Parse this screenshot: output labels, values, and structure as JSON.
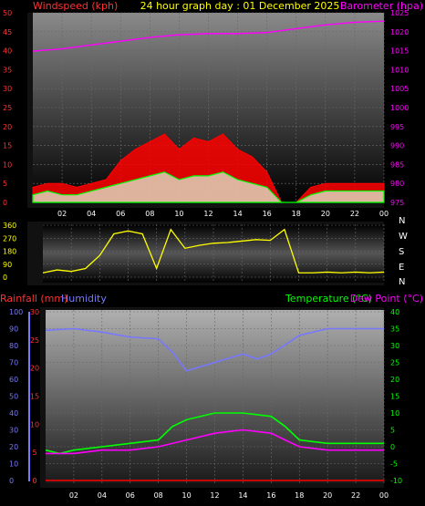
{
  "header": {
    "left_title": "Windspeed (kph)",
    "center_title": "24 hour graph day : 01 December 2025",
    "right_title": "Barometer (hpa)"
  },
  "hour_labels": [
    "02",
    "04",
    "06",
    "08",
    "10",
    "12",
    "14",
    "16",
    "18",
    "20",
    "22",
    "00"
  ],
  "colors": {
    "wind": "#ff0000",
    "gust": "#00ff00",
    "barometer": "#ff00ff",
    "direction": "#ffff00",
    "rain": "#ff0000",
    "humidity": "#7777ff",
    "temperature": "#00ff00",
    "dewpoint": "#ff00ff"
  },
  "chart_data": [
    {
      "type": "line",
      "name": "wind-barometer",
      "left_axis": {
        "label": "Windspeed (kph)",
        "ticks": [
          0,
          5,
          10,
          15,
          20,
          25,
          30,
          35,
          40,
          45,
          50
        ],
        "range": [
          0,
          50
        ]
      },
      "right_axis": {
        "label": "Barometer (hpa)",
        "ticks": [
          975,
          980,
          985,
          990,
          995,
          1000,
          1005,
          1010,
          1015,
          1020,
          1025
        ],
        "range": [
          975,
          1025
        ]
      },
      "series": [
        {
          "name": "Barometer",
          "axis": "right",
          "x": [
            0,
            2,
            4,
            6,
            8,
            10,
            12,
            14,
            16,
            18,
            20,
            22,
            24
          ],
          "y": [
            1014.9,
            1015.5,
            1016.5,
            1017.5,
            1018.5,
            1019.2,
            1019.5,
            1019.5,
            1019.8,
            1020.8,
            1021.8,
            1022.5,
            1022.8
          ]
        },
        {
          "name": "Wind",
          "axis": "left",
          "x": [
            0,
            1,
            2,
            3,
            4,
            5,
            6,
            7,
            8,
            9,
            10,
            11,
            12,
            13,
            14,
            15,
            16,
            17,
            18,
            19,
            20,
            21,
            22,
            23,
            24
          ],
          "y": [
            4,
            5,
            5,
            4,
            5,
            6,
            11,
            14,
            16,
            18,
            14,
            17,
            16,
            18,
            14,
            12,
            8,
            0,
            0,
            4,
            5,
            5,
            5,
            5,
            5
          ]
        },
        {
          "name": "Gust",
          "axis": "left",
          "x": [
            0,
            1,
            2,
            3,
            4,
            5,
            6,
            7,
            8,
            9,
            10,
            11,
            12,
            13,
            14,
            15,
            16,
            17,
            18,
            19,
            20,
            21,
            22,
            23,
            24
          ],
          "y": [
            2,
            3,
            2,
            2,
            3,
            4,
            5,
            6,
            7,
            8,
            6,
            7,
            7,
            8,
            6,
            5,
            4,
            0,
            0,
            2,
            3,
            3,
            3,
            3,
            3
          ]
        }
      ]
    },
    {
      "type": "line",
      "name": "wind-direction",
      "left_axis": {
        "ticks": [
          0,
          90,
          180,
          270,
          360
        ],
        "range": [
          0,
          360
        ]
      },
      "right_axis": {
        "ticks": [
          "N",
          "W",
          "S",
          "E",
          "N"
        ]
      },
      "series": [
        {
          "name": "Direction",
          "x": [
            0,
            1,
            2,
            3,
            4,
            5,
            6,
            7,
            8,
            9,
            10,
            11,
            12,
            13,
            14,
            15,
            16,
            17,
            18,
            19,
            20,
            21,
            22,
            23,
            24
          ],
          "y": [
            30,
            50,
            40,
            60,
            150,
            300,
            320,
            300,
            60,
            330,
            200,
            220,
            235,
            240,
            250,
            260,
            255,
            330,
            30,
            30,
            35,
            30,
            35,
            30,
            35
          ]
        }
      ]
    },
    {
      "type": "line",
      "name": "rain-humidity-temperature",
      "humidity_axis": {
        "label": "Humidity",
        "ticks": [
          0,
          10,
          20,
          30,
          40,
          50,
          60,
          70,
          80,
          90,
          100
        ],
        "range": [
          0,
          100
        ]
      },
      "rain_axis": {
        "label": "Rainfall (mm)",
        "ticks": [
          0,
          5,
          10,
          15,
          20,
          25,
          30
        ],
        "range": [
          0,
          30
        ]
      },
      "temp_axis": {
        "label": "Temperature (°C)",
        "ticks": [
          -10,
          -5,
          0,
          5,
          10,
          15,
          20,
          25,
          30,
          35,
          40
        ],
        "range": [
          -10,
          40
        ]
      },
      "dew_label": "Dew Point (°C)",
      "series": [
        {
          "name": "Humidity",
          "axis": "humidity",
          "x": [
            0,
            2,
            4,
            6,
            8,
            9,
            10,
            12,
            14,
            15,
            16,
            18,
            20,
            22,
            24
          ],
          "y": [
            89,
            90,
            88,
            85,
            84,
            76,
            65,
            70,
            75,
            72,
            75,
            86,
            90,
            90,
            90
          ]
        },
        {
          "name": "Temperature",
          "axis": "temp",
          "x": [
            0,
            1,
            2,
            4,
            6,
            8,
            9,
            10,
            12,
            14,
            16,
            17,
            18,
            20,
            22,
            24
          ],
          "y": [
            -1,
            -2,
            -1,
            0,
            1,
            2,
            6,
            8,
            10,
            10,
            9,
            6,
            2,
            1,
            1,
            1
          ]
        },
        {
          "name": "Dew Point",
          "axis": "temp",
          "x": [
            0,
            2,
            4,
            6,
            8,
            10,
            12,
            14,
            16,
            17,
            18,
            20,
            22,
            24
          ],
          "y": [
            -2,
            -2,
            -1,
            -1,
            0,
            2,
            4,
            5,
            4,
            2,
            0,
            -1,
            -1,
            -1
          ]
        },
        {
          "name": "Rainfall",
          "axis": "rain",
          "x": [
            0,
            24
          ],
          "y": [
            0,
            0
          ]
        }
      ]
    }
  ],
  "labels_bottom": {
    "rain": "Rainfall (mm)",
    "humidity": "Humidity",
    "temperature": "Temperature (°C)",
    "dewpoint": "Dew Point (°C)"
  }
}
